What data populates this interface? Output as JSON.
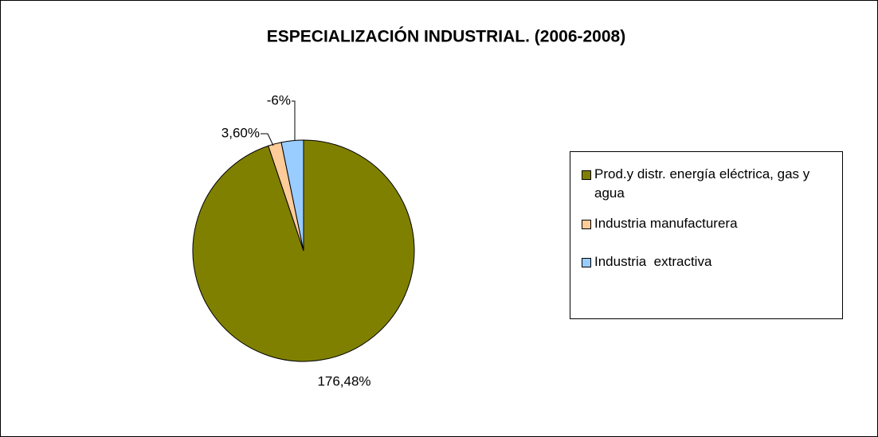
{
  "chart_data": {
    "type": "pie",
    "title": "ESPECIALIZACIÓN INDUSTRIAL. (2006-2008)",
    "categories": [
      "Prod.y distr. energía eléctrica, gas y agua",
      "Industria manufacturera",
      "Industria  extractiva"
    ],
    "values": [
      176.48,
      3.6,
      -6
    ],
    "value_labels": [
      "176,48%",
      "3,60%",
      "-6%"
    ],
    "colors": [
      "#808000",
      "#FFCC99",
      "#99CCFF"
    ],
    "legend": "right"
  }
}
